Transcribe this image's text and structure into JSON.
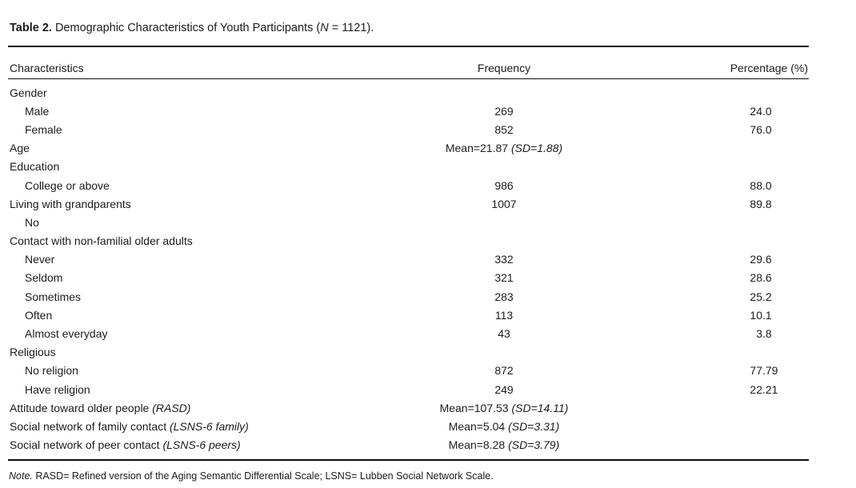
{
  "title": {
    "segments": [
      {
        "t": "Table 2.",
        "style": "bold"
      },
      {
        "t": " Demographic Characteristics of Youth Participants (",
        "style": ""
      },
      {
        "t": "N",
        "style": "italic"
      },
      {
        "t": " = 1121).",
        "style": ""
      }
    ]
  },
  "table": {
    "columns": [
      {
        "label": "Characteristics",
        "align": "left"
      },
      {
        "label": "Frequency",
        "align": "center"
      },
      {
        "label": "Percentage (%)",
        "align": "right"
      }
    ],
    "rows": [
      {
        "indent": 0,
        "label": [
          {
            "t": "Gender"
          }
        ]
      },
      {
        "indent": 1,
        "label": [
          {
            "t": "Male"
          }
        ],
        "frequency": [
          {
            "t": "269"
          }
        ],
        "percentage": "24.0"
      },
      {
        "indent": 1,
        "label": [
          {
            "t": "Female"
          }
        ],
        "frequency": [
          {
            "t": "852"
          }
        ],
        "percentage": "76.0"
      },
      {
        "indent": 0,
        "label": [
          {
            "t": "Age"
          }
        ],
        "frequency": [
          {
            "t": "Mean=21.87 "
          },
          {
            "t": "(SD=1.88)",
            "style": "italic"
          }
        ]
      },
      {
        "indent": 0,
        "label": [
          {
            "t": "Education"
          }
        ]
      },
      {
        "indent": 1,
        "label": [
          {
            "t": "College or above"
          }
        ],
        "frequency": [
          {
            "t": "986"
          }
        ],
        "percentage": "88.0"
      },
      {
        "indent": 0,
        "label": [
          {
            "t": "Living with grandparents"
          }
        ],
        "frequency": [
          {
            "t": "1007"
          }
        ],
        "percentage": "89.8"
      },
      {
        "indent": 1,
        "label": [
          {
            "t": "No"
          }
        ]
      },
      {
        "indent": 0,
        "label": [
          {
            "t": "Contact with non-familial older adults"
          }
        ]
      },
      {
        "indent": 1,
        "label": [
          {
            "t": "Never"
          }
        ],
        "frequency": [
          {
            "t": "332"
          }
        ],
        "percentage": "29.6"
      },
      {
        "indent": 1,
        "label": [
          {
            "t": "Seldom"
          }
        ],
        "frequency": [
          {
            "t": "321"
          }
        ],
        "percentage": "28.6"
      },
      {
        "indent": 1,
        "label": [
          {
            "t": "Sometimes"
          }
        ],
        "frequency": [
          {
            "t": "283"
          }
        ],
        "percentage": "25.2"
      },
      {
        "indent": 1,
        "label": [
          {
            "t": "Often"
          }
        ],
        "frequency": [
          {
            "t": "113"
          }
        ],
        "percentage": "10.1"
      },
      {
        "indent": 1,
        "label": [
          {
            "t": "Almost everyday"
          }
        ],
        "frequency": [
          {
            "t": "43"
          }
        ],
        "percentage": "3.8"
      },
      {
        "indent": 0,
        "label": [
          {
            "t": "Religious"
          }
        ]
      },
      {
        "indent": 1,
        "label": [
          {
            "t": "No religion"
          }
        ],
        "frequency": [
          {
            "t": "872"
          }
        ],
        "percentage": "77.79"
      },
      {
        "indent": 1,
        "label": [
          {
            "t": "Have religion"
          }
        ],
        "frequency": [
          {
            "t": "249"
          }
        ],
        "percentage": "22.21"
      },
      {
        "indent": 0,
        "label": [
          {
            "t": "Attitude toward older people "
          },
          {
            "t": "(RASD)",
            "style": "italic"
          }
        ],
        "frequency": [
          {
            "t": "Mean=107.53 "
          },
          {
            "t": "(SD=14.11)",
            "style": "italic"
          }
        ]
      },
      {
        "indent": 0,
        "label": [
          {
            "t": "Social network of family contact "
          },
          {
            "t": "(LSNS-6 family)",
            "style": "italic"
          }
        ],
        "frequency": [
          {
            "t": "Mean=5.04 "
          },
          {
            "t": "(SD=3.31)",
            "style": "italic"
          }
        ]
      },
      {
        "indent": 0,
        "label": [
          {
            "t": "Social network of peer contact "
          },
          {
            "t": "(LSNS-6 peers)",
            "style": "italic"
          }
        ],
        "frequency": [
          {
            "t": "Mean=8.28 "
          },
          {
            "t": "(SD=3.79)",
            "style": "italic"
          }
        ]
      }
    ]
  },
  "note": {
    "segments": [
      {
        "t": "Note.",
        "style": "italic"
      },
      {
        "t": " RASD= Refined version of the Aging Semantic Differential Scale; LSNS= Lubben Social Network Scale.",
        "style": ""
      }
    ]
  },
  "colors": {
    "background": "#ffffff",
    "text": "#1c1c1c",
    "rule": "#0d0d0d"
  }
}
